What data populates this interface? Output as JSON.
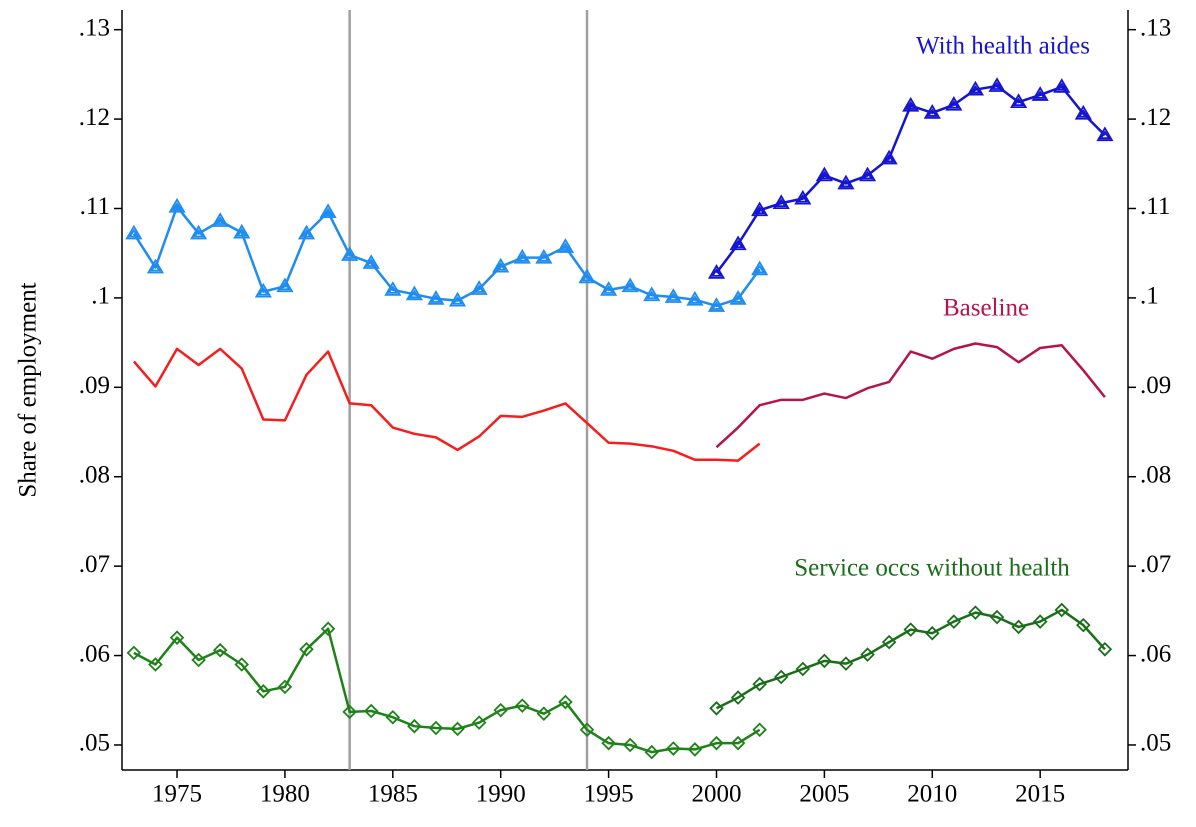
{
  "chart_data": {
    "type": "line",
    "ylabel": "Share of employment",
    "xlim": [
      1972.45,
      2019.07
    ],
    "ylim": [
      0.0472,
      0.1322
    ],
    "xticks": [
      1975,
      1980,
      1985,
      1990,
      1995,
      2000,
      2005,
      2010,
      2015
    ],
    "yticks": [
      {
        "value": 0.05,
        "label": ".05"
      },
      {
        "value": 0.06,
        "label": ".06"
      },
      {
        "value": 0.07,
        "label": ".07"
      },
      {
        "value": 0.08,
        "label": ".08"
      },
      {
        "value": 0.09,
        "label": ".09"
      },
      {
        "value": 0.1,
        "label": ".1"
      },
      {
        "value": 0.11,
        "label": ".11"
      },
      {
        "value": 0.12,
        "label": ".12"
      },
      {
        "value": 0.13,
        "label": ".13"
      }
    ],
    "right_axis_ticks": true,
    "vlines": [
      1983,
      1994
    ],
    "vline_color": "#a0a0a0",
    "series": [
      {
        "name": "With health aides",
        "marker": "triangle",
        "segments": [
          {
            "color": "#1e8cf0",
            "x": [
              1973,
              1974,
              1975,
              1976,
              1977,
              1978,
              1979,
              1980,
              1981,
              1982,
              1983,
              1984,
              1985,
              1986,
              1987,
              1988,
              1989,
              1990,
              1991,
              1992,
              1993,
              1994,
              1995,
              1996,
              1997,
              1998,
              1999,
              2000,
              2001,
              2002
            ],
            "values": [
              0.1072,
              0.1034,
              0.1102,
              0.1072,
              0.1086,
              0.1073,
              0.1007,
              0.1013,
              0.1072,
              0.1096,
              0.1048,
              0.1039,
              0.1009,
              0.1004,
              0.0999,
              0.0997,
              0.101,
              0.1035,
              0.1045,
              0.1045,
              0.1057,
              0.1023,
              0.1009,
              0.1013,
              0.1003,
              0.1001,
              0.0998,
              0.0991,
              0.0999,
              0.1032
            ]
          },
          {
            "color": "#1414d2",
            "x": [
              2000,
              2001,
              2002,
              2003,
              2004,
              2005,
              2006,
              2007,
              2008,
              2009,
              2010,
              2011,
              2012,
              2013,
              2014,
              2015,
              2016,
              2017,
              2018
            ],
            "values": [
              0.1028,
              0.106,
              0.1098,
              0.1106,
              0.1111,
              0.1137,
              0.1128,
              0.1137,
              0.1156,
              0.1215,
              0.1207,
              0.1216,
              0.1233,
              0.1237,
              0.1219,
              0.1227,
              0.1236,
              0.1206,
              0.1182
            ]
          }
        ]
      },
      {
        "name": "Baseline",
        "marker": "none",
        "segments": [
          {
            "color": "#f51e1e",
            "x": [
              1973,
              1974,
              1975,
              1976,
              1977,
              1978,
              1979,
              1980,
              1981,
              1982,
              1983,
              1984,
              1985,
              1986,
              1987,
              1988,
              1989,
              1990,
              1991,
              1992,
              1993,
              1994,
              1995,
              1996,
              1997,
              1998,
              1999,
              2000,
              2001,
              2002
            ],
            "values": [
              0.0929,
              0.0901,
              0.0943,
              0.0925,
              0.0943,
              0.0921,
              0.0864,
              0.0863,
              0.0914,
              0.094,
              0.0882,
              0.088,
              0.0855,
              0.0848,
              0.0844,
              0.083,
              0.0845,
              0.0868,
              0.0867,
              0.0874,
              0.0882,
              0.086,
              0.0838,
              0.0837,
              0.0834,
              0.0829,
              0.0819,
              0.0819,
              0.0818,
              0.0837
            ]
          },
          {
            "color": "#b4144b",
            "x": [
              2000,
              2001,
              2002,
              2003,
              2004,
              2005,
              2006,
              2007,
              2008,
              2009,
              2010,
              2011,
              2012,
              2013,
              2014,
              2015,
              2016,
              2017,
              2018
            ],
            "values": [
              0.0833,
              0.0855,
              0.088,
              0.0886,
              0.0886,
              0.0893,
              0.0888,
              0.0899,
              0.0906,
              0.094,
              0.0932,
              0.0943,
              0.0949,
              0.0945,
              0.0928,
              0.0944,
              0.0947,
              0.0919,
              0.0889
            ]
          }
        ]
      },
      {
        "name": "Service occs without health",
        "marker": "diamond",
        "segments": [
          {
            "color": "#1e8219",
            "x": [
              1973,
              1974,
              1975,
              1976,
              1977,
              1978,
              1979,
              1980,
              1981,
              1982,
              1983,
              1984,
              1985,
              1986,
              1987,
              1988,
              1989,
              1990,
              1991,
              1992,
              1993,
              1994,
              1995,
              1996,
              1997,
              1998,
              1999,
              2000,
              2001,
              2002
            ],
            "values": [
              0.0603,
              0.059,
              0.062,
              0.0595,
              0.0606,
              0.059,
              0.056,
              0.0565,
              0.0607,
              0.063,
              0.0537,
              0.0538,
              0.0531,
              0.0521,
              0.0519,
              0.0518,
              0.0525,
              0.0539,
              0.0544,
              0.0535,
              0.0548,
              0.0517,
              0.0502,
              0.05,
              0.0492,
              0.0496,
              0.0495,
              0.0502,
              0.0502,
              0.0517
            ]
          },
          {
            "color": "#1a6e1a",
            "x": [
              2000,
              2001,
              2002,
              2003,
              2004,
              2005,
              2006,
              2007,
              2008,
              2009,
              2010,
              2011,
              2012,
              2013,
              2014,
              2015,
              2016,
              2017,
              2018
            ],
            "values": [
              0.0541,
              0.0553,
              0.0568,
              0.0576,
              0.0585,
              0.0594,
              0.0591,
              0.0601,
              0.0615,
              0.0629,
              0.0625,
              0.0638,
              0.0648,
              0.0643,
              0.0632,
              0.0638,
              0.0651,
              0.0634,
              0.0607
            ]
          }
        ]
      }
    ]
  }
}
